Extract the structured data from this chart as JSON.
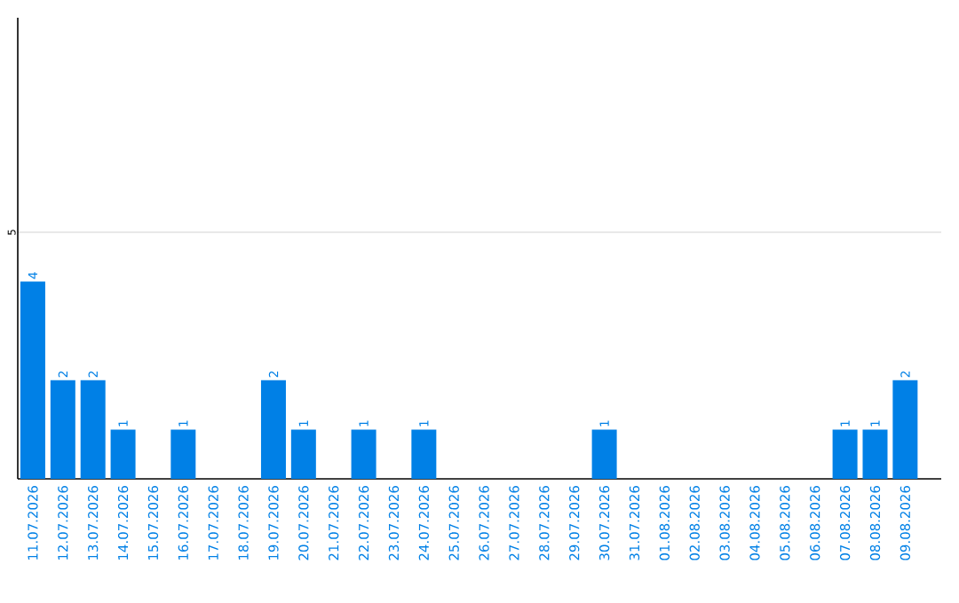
{
  "chart_data": {
    "type": "bar",
    "categories": [
      "11.07.2026",
      "12.07.2026",
      "13.07.2026",
      "14.07.2026",
      "15.07.2026",
      "16.07.2026",
      "17.07.2026",
      "18.07.2026",
      "19.07.2026",
      "20.07.2026",
      "21.07.2026",
      "22.07.2026",
      "23.07.2026",
      "24.07.2026",
      "25.07.2026",
      "26.07.2026",
      "27.07.2026",
      "28.07.2026",
      "29.07.2026",
      "30.07.2026",
      "31.07.2026",
      "01.08.2026",
      "02.08.2026",
      "03.08.2026",
      "04.08.2026",
      "05.08.2026",
      "06.08.2026",
      "07.08.2026",
      "08.08.2026",
      "09.08.2026"
    ],
    "values": [
      4,
      2,
      2,
      1,
      0,
      1,
      0,
      0,
      2,
      1,
      0,
      1,
      0,
      1,
      0,
      0,
      0,
      0,
      0,
      1,
      0,
      0,
      0,
      0,
      0,
      0,
      0,
      1,
      1,
      2
    ],
    "value_labels": [
      "4",
      "2",
      "2",
      "1",
      null,
      "1",
      null,
      null,
      "2",
      "1",
      null,
      "1",
      null,
      "1",
      null,
      null,
      null,
      null,
      null,
      "1",
      null,
      null,
      null,
      null,
      null,
      null,
      null,
      "1",
      "1",
      "2"
    ],
    "color": "#0080e6",
    "ylim": [
      0,
      9.35
    ],
    "yticks": [
      5
    ],
    "grid": "y"
  }
}
